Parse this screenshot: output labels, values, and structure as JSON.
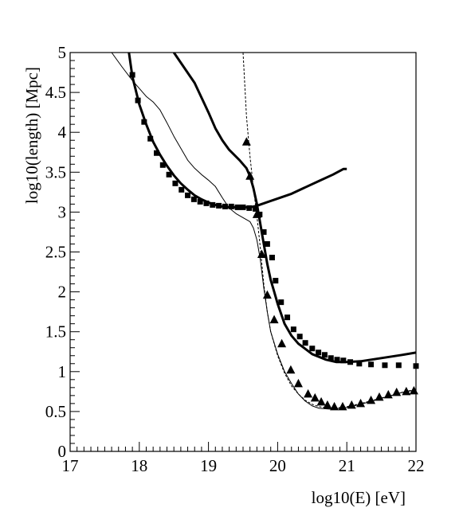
{
  "chart_data": {
    "type": "line",
    "title": "",
    "xlabel": "log10(E) [eV]",
    "ylabel": "log10(length) [Mpc]",
    "xlim": [
      17,
      22
    ],
    "ylim": [
      0,
      5
    ],
    "x_ticks": [
      "17",
      "18",
      "19",
      "20",
      "21",
      "22"
    ],
    "y_ticks": [
      "0",
      "0.5",
      "1",
      "1.5",
      "2",
      "2.5",
      "3",
      "3.5",
      "4",
      "4.5",
      "5"
    ],
    "grid": false,
    "legend": "none",
    "series": [
      {
        "style": "thick-solid",
        "points": [
          [
            18.5,
            5.0
          ],
          [
            18.8,
            4.62
          ],
          [
            19.0,
            4.25
          ],
          [
            19.1,
            4.05
          ],
          [
            19.2,
            3.9
          ],
          [
            19.3,
            3.78
          ],
          [
            19.45,
            3.65
          ],
          [
            19.55,
            3.55
          ],
          [
            19.6,
            3.45
          ],
          [
            19.65,
            3.3
          ],
          [
            19.7,
            3.1
          ],
          [
            19.75,
            2.85
          ],
          [
            19.8,
            2.6
          ],
          [
            19.85,
            2.35
          ],
          [
            19.9,
            2.15
          ],
          [
            19.95,
            2.0
          ],
          [
            20.0,
            1.85
          ],
          [
            20.1,
            1.6
          ],
          [
            20.2,
            1.45
          ],
          [
            20.3,
            1.35
          ],
          [
            20.5,
            1.22
          ],
          [
            20.7,
            1.15
          ],
          [
            20.85,
            1.12
          ],
          [
            21.0,
            1.12
          ],
          [
            21.2,
            1.13
          ],
          [
            21.5,
            1.17
          ],
          [
            21.8,
            1.21
          ],
          [
            22.0,
            1.24
          ]
        ]
      },
      {
        "style": "thick-solid",
        "points": [
          [
            17.85,
            5.0
          ],
          [
            17.9,
            4.7
          ],
          [
            18.0,
            4.35
          ],
          [
            18.1,
            4.1
          ],
          [
            18.2,
            3.88
          ],
          [
            18.3,
            3.72
          ],
          [
            18.4,
            3.58
          ],
          [
            18.5,
            3.46
          ],
          [
            18.6,
            3.36
          ],
          [
            18.7,
            3.28
          ],
          [
            18.8,
            3.21
          ],
          [
            18.9,
            3.16
          ],
          [
            19.0,
            3.12
          ],
          [
            19.1,
            3.09
          ],
          [
            19.2,
            3.07
          ],
          [
            19.3,
            3.06
          ],
          [
            19.4,
            3.06
          ],
          [
            19.5,
            3.06
          ],
          [
            19.6,
            3.06
          ],
          [
            19.7,
            3.08
          ],
          [
            19.8,
            3.11
          ],
          [
            20.0,
            3.17
          ],
          [
            20.2,
            3.23
          ],
          [
            20.4,
            3.31
          ],
          [
            20.6,
            3.39
          ],
          [
            20.8,
            3.47
          ],
          [
            20.95,
            3.54
          ],
          [
            21.0,
            3.54
          ]
        ]
      },
      {
        "style": "thin-solid",
        "points": [
          [
            17.6,
            5.0
          ],
          [
            17.75,
            4.82
          ],
          [
            17.9,
            4.65
          ],
          [
            18.0,
            4.55
          ],
          [
            18.1,
            4.45
          ],
          [
            18.2,
            4.38
          ],
          [
            18.3,
            4.28
          ],
          [
            18.4,
            4.12
          ],
          [
            18.5,
            3.95
          ],
          [
            18.6,
            3.8
          ],
          [
            18.7,
            3.65
          ],
          [
            18.8,
            3.55
          ],
          [
            18.9,
            3.47
          ],
          [
            19.0,
            3.4
          ],
          [
            19.1,
            3.32
          ],
          [
            19.2,
            3.18
          ],
          [
            19.3,
            3.05
          ],
          [
            19.4,
            2.98
          ],
          [
            19.5,
            2.93
          ],
          [
            19.6,
            2.88
          ],
          [
            19.65,
            2.8
          ],
          [
            19.7,
            2.65
          ],
          [
            19.75,
            2.4
          ],
          [
            19.8,
            2.05
          ],
          [
            19.85,
            1.75
          ],
          [
            19.9,
            1.5
          ],
          [
            20.0,
            1.22
          ],
          [
            20.1,
            1.0
          ],
          [
            20.2,
            0.85
          ],
          [
            20.3,
            0.72
          ],
          [
            20.4,
            0.63
          ],
          [
            20.5,
            0.57
          ],
          [
            20.6,
            0.54
          ],
          [
            20.75,
            0.53
          ],
          [
            20.9,
            0.54
          ],
          [
            21.0,
            0.55
          ],
          [
            21.2,
            0.59
          ],
          [
            21.4,
            0.64
          ],
          [
            21.6,
            0.69
          ],
          [
            21.8,
            0.74
          ],
          [
            22.0,
            0.77
          ]
        ]
      },
      {
        "style": "dashed",
        "points": [
          [
            19.5,
            5.0
          ],
          [
            19.55,
            4.2
          ],
          [
            19.6,
            3.7
          ],
          [
            19.65,
            3.3
          ],
          [
            19.7,
            2.95
          ],
          [
            19.75,
            2.55
          ],
          [
            19.8,
            2.1
          ],
          [
            19.85,
            1.75
          ],
          [
            19.9,
            1.5
          ],
          [
            20.0,
            1.2
          ],
          [
            20.1,
            0.98
          ],
          [
            20.2,
            0.82
          ],
          [
            20.3,
            0.72
          ],
          [
            20.4,
            0.64
          ],
          [
            20.5,
            0.59
          ],
          [
            20.6,
            0.56
          ],
          [
            20.8,
            0.54
          ],
          [
            21.0,
            0.56
          ],
          [
            21.2,
            0.6
          ],
          [
            21.5,
            0.67
          ],
          [
            21.8,
            0.74
          ],
          [
            22.0,
            0.78
          ]
        ]
      },
      {
        "style": "square-markers",
        "points": [
          [
            17.9,
            4.72
          ],
          [
            17.98,
            4.4
          ],
          [
            18.07,
            4.13
          ],
          [
            18.16,
            3.92
          ],
          [
            18.25,
            3.74
          ],
          [
            18.34,
            3.59
          ],
          [
            18.43,
            3.47
          ],
          [
            18.52,
            3.36
          ],
          [
            18.61,
            3.28
          ],
          [
            18.7,
            3.21
          ],
          [
            18.79,
            3.16
          ],
          [
            18.88,
            3.13
          ],
          [
            18.97,
            3.11
          ],
          [
            19.06,
            3.09
          ],
          [
            19.15,
            3.08
          ],
          [
            19.24,
            3.07
          ],
          [
            19.33,
            3.07
          ],
          [
            19.42,
            3.06
          ],
          [
            19.5,
            3.06
          ],
          [
            19.59,
            3.05
          ],
          [
            19.68,
            3.04
          ],
          [
            19.74,
            2.97
          ],
          [
            19.8,
            2.75
          ],
          [
            19.85,
            2.6
          ],
          [
            19.92,
            2.43
          ],
          [
            19.97,
            2.14
          ],
          [
            20.05,
            1.87
          ],
          [
            20.14,
            1.68
          ],
          [
            20.23,
            1.53
          ],
          [
            20.32,
            1.44
          ],
          [
            20.4,
            1.36
          ],
          [
            20.5,
            1.29
          ],
          [
            20.59,
            1.24
          ],
          [
            20.68,
            1.21
          ],
          [
            20.77,
            1.17
          ],
          [
            20.86,
            1.15
          ],
          [
            20.95,
            1.14
          ],
          [
            21.05,
            1.12
          ],
          [
            21.18,
            1.1
          ],
          [
            21.35,
            1.09
          ],
          [
            21.55,
            1.08
          ],
          [
            21.75,
            1.08
          ],
          [
            22.0,
            1.07
          ]
        ]
      },
      {
        "style": "triangle-markers",
        "points": [
          [
            19.55,
            3.88
          ],
          [
            19.6,
            3.45
          ],
          [
            19.7,
            2.97
          ],
          [
            19.77,
            2.47
          ],
          [
            19.85,
            1.96
          ],
          [
            19.95,
            1.65
          ],
          [
            20.06,
            1.35
          ],
          [
            20.19,
            1.02
          ],
          [
            20.3,
            0.85
          ],
          [
            20.44,
            0.72
          ],
          [
            20.54,
            0.67
          ],
          [
            20.63,
            0.62
          ],
          [
            20.72,
            0.58
          ],
          [
            20.82,
            0.56
          ],
          [
            20.94,
            0.56
          ],
          [
            21.07,
            0.58
          ],
          [
            21.2,
            0.6
          ],
          [
            21.35,
            0.64
          ],
          [
            21.47,
            0.68
          ],
          [
            21.6,
            0.71
          ],
          [
            21.72,
            0.74
          ],
          [
            21.86,
            0.75
          ],
          [
            21.97,
            0.76
          ]
        ]
      }
    ]
  }
}
